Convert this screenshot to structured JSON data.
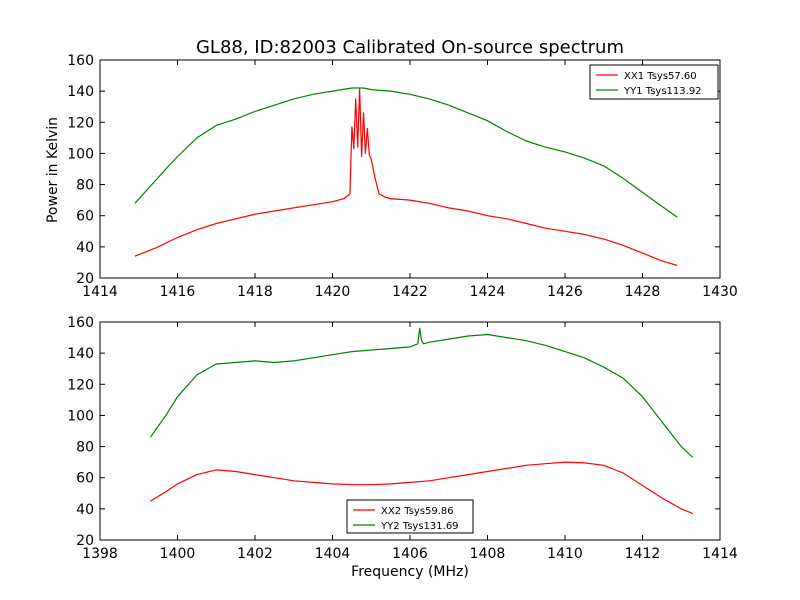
{
  "colors": {
    "xx": "#ff0000",
    "yy": "#008000"
  },
  "chart_data": [
    {
      "type": "line",
      "title": "GL88, ID:82003 Calibrated On-source spectrum",
      "xlabel": "",
      "ylabel": "Power in Kelvin",
      "xlim": [
        1414,
        1430
      ],
      "ylim": [
        20,
        160
      ],
      "xticks": [
        1414,
        1416,
        1418,
        1420,
        1422,
        1424,
        1426,
        1428,
        1430
      ],
      "yticks": [
        20,
        40,
        60,
        80,
        100,
        120,
        140,
        160
      ],
      "legend_position": "top-right",
      "series": [
        {
          "name": "XX1 Tsys57.60",
          "color": "#ff0000",
          "x": [
            1414.9,
            1415.5,
            1416.0,
            1416.5,
            1417.0,
            1417.5,
            1418.0,
            1418.5,
            1419.0,
            1419.5,
            1420.0,
            1420.3,
            1420.45,
            1420.5,
            1420.55,
            1420.6,
            1420.65,
            1420.7,
            1420.75,
            1420.8,
            1420.85,
            1420.9,
            1420.95,
            1421.0,
            1421.05,
            1421.1,
            1421.2,
            1421.35,
            1421.5,
            1422.0,
            1422.5,
            1423.0,
            1423.5,
            1424.0,
            1424.5,
            1425.0,
            1425.5,
            1426.0,
            1426.5,
            1427.0,
            1427.5,
            1428.0,
            1428.5,
            1428.9
          ],
          "y": [
            34,
            40,
            46,
            51,
            55,
            58,
            61,
            63,
            65,
            67,
            69,
            71,
            74,
            117,
            103,
            135,
            104,
            142,
            98,
            126,
            100,
            116,
            99,
            96,
            90,
            84,
            74,
            72,
            71,
            70,
            68,
            65,
            63,
            60,
            58,
            55,
            52,
            50,
            48,
            45,
            41,
            36,
            31,
            28
          ]
        },
        {
          "name": "YY1 Tsys113.92",
          "color": "#008000",
          "x": [
            1414.9,
            1415.3,
            1415.7,
            1416.0,
            1416.5,
            1417.0,
            1417.5,
            1418.0,
            1418.5,
            1419.0,
            1419.5,
            1420.0,
            1420.5,
            1420.8,
            1421.0,
            1421.5,
            1422.0,
            1422.5,
            1423.0,
            1423.5,
            1424.0,
            1424.5,
            1425.0,
            1425.5,
            1426.0,
            1426.5,
            1427.0,
            1427.5,
            1428.0,
            1428.5,
            1428.9
          ],
          "y": [
            68,
            79,
            90,
            98,
            110,
            118,
            122,
            127,
            131,
            135,
            138,
            140,
            142,
            142,
            141,
            140,
            138,
            135,
            131,
            126,
            121,
            114,
            108,
            104,
            101,
            97,
            92,
            84,
            75,
            66,
            59
          ]
        }
      ]
    },
    {
      "type": "line",
      "title": "",
      "xlabel": "Frequency (MHz)",
      "ylabel": "",
      "xlim": [
        1398,
        1414
      ],
      "ylim": [
        20,
        160
      ],
      "xticks": [
        1398,
        1400,
        1402,
        1404,
        1406,
        1408,
        1410,
        1412,
        1414
      ],
      "yticks": [
        20,
        40,
        60,
        80,
        100,
        120,
        140,
        160
      ],
      "legend_position": "bottom-center",
      "series": [
        {
          "name": "XX2 Tsys59.86",
          "color": "#ff0000",
          "x": [
            1399.3,
            1399.7,
            1400.0,
            1400.5,
            1401.0,
            1401.5,
            1402.0,
            1402.5,
            1403.0,
            1403.5,
            1404.0,
            1404.5,
            1405.0,
            1405.5,
            1406.0,
            1406.5,
            1407.0,
            1407.5,
            1408.0,
            1408.5,
            1409.0,
            1409.5,
            1410.0,
            1410.5,
            1411.0,
            1411.5,
            1412.0,
            1412.5,
            1413.0,
            1413.3
          ],
          "y": [
            45,
            51,
            56,
            62,
            65,
            64,
            62,
            60,
            58,
            57,
            56,
            55.5,
            55.5,
            56,
            57,
            58,
            60,
            62,
            64,
            66,
            68,
            69,
            70,
            69.5,
            68,
            63,
            55,
            47,
            40,
            37
          ]
        },
        {
          "name": "YY2 Tsys131.69",
          "color": "#008000",
          "x": [
            1399.3,
            1399.7,
            1400.0,
            1400.5,
            1401.0,
            1401.5,
            1402.0,
            1402.5,
            1403.0,
            1403.5,
            1404.0,
            1404.5,
            1405.0,
            1405.5,
            1406.0,
            1406.2,
            1406.25,
            1406.3,
            1406.35,
            1406.5,
            1407.0,
            1407.5,
            1408.0,
            1408.5,
            1409.0,
            1409.5,
            1410.0,
            1410.5,
            1411.0,
            1411.5,
            1412.0,
            1412.5,
            1413.0,
            1413.3
          ],
          "y": [
            86,
            100,
            112,
            126,
            133,
            134,
            135,
            134,
            135,
            137,
            139,
            141,
            142,
            143,
            144,
            146,
            156,
            148,
            146,
            147,
            149,
            151,
            152,
            150,
            148,
            145,
            141,
            137,
            131,
            124,
            112,
            96,
            80,
            73
          ]
        }
      ]
    }
  ]
}
